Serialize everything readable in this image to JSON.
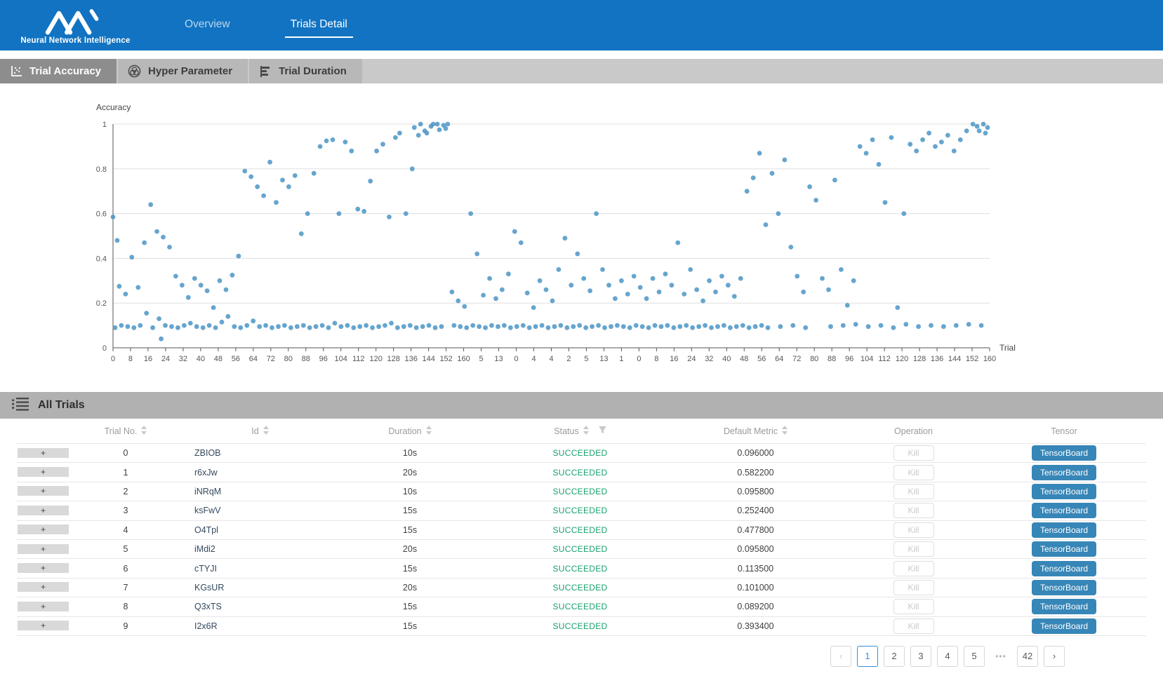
{
  "brand": {
    "subtitle": "Neural Network Intelligence"
  },
  "nav": {
    "tabs": [
      {
        "label": "Overview",
        "active": false
      },
      {
        "label": "Trials Detail",
        "active": true
      }
    ]
  },
  "subtabs": [
    {
      "label": "Trial Accuracy",
      "icon": "scatter-chart-icon",
      "active": true
    },
    {
      "label": "Hyper Parameter",
      "icon": "venn-rings-icon",
      "active": false
    },
    {
      "label": "Trial Duration",
      "icon": "bar-chart-icon",
      "active": false
    }
  ],
  "chart_data": {
    "type": "scatter",
    "title": "",
    "ylabel": "Accuracy",
    "xlabel": "Trial",
    "ylim": [
      0,
      1
    ],
    "grid": true,
    "y_ticks": [
      "0",
      "0.2",
      "0.4",
      "0.6",
      "0.8",
      "1"
    ],
    "x_tick_labels": [
      "0",
      "8",
      "16",
      "24",
      "32",
      "40",
      "48",
      "56",
      "64",
      "72",
      "80",
      "88",
      "96",
      "104",
      "112",
      "120",
      "128",
      "136",
      "144",
      "152",
      "160",
      "5",
      "13",
      "0",
      "4",
      "4",
      "2",
      "5",
      "13",
      "1",
      "0",
      "8",
      "16",
      "24",
      "32",
      "40",
      "48",
      "56",
      "64",
      "72",
      "80",
      "88",
      "96",
      "104",
      "112",
      "120",
      "128",
      "136",
      "144",
      "152",
      "160"
    ],
    "x_range": [
      0,
      419
    ],
    "point_color": "#4b95c6",
    "points": [
      [
        1,
        0.09
      ],
      [
        4,
        0.1
      ],
      [
        7,
        0.095
      ],
      [
        10,
        0.09
      ],
      [
        13,
        0.1
      ],
      [
        16,
        0.155
      ],
      [
        19,
        0.09
      ],
      [
        22,
        0.13
      ],
      [
        25,
        0.1
      ],
      [
        28,
        0.095
      ],
      [
        31,
        0.09
      ],
      [
        34,
        0.1
      ],
      [
        37,
        0.11
      ],
      [
        40,
        0.095
      ],
      [
        43,
        0.09
      ],
      [
        46,
        0.1
      ],
      [
        49,
        0.09
      ],
      [
        52,
        0.115
      ],
      [
        55,
        0.14
      ],
      [
        58,
        0.095
      ],
      [
        61,
        0.09
      ],
      [
        64,
        0.1
      ],
      [
        67,
        0.12
      ],
      [
        70,
        0.095
      ],
      [
        73,
        0.1
      ],
      [
        76,
        0.09
      ],
      [
        79,
        0.095
      ],
      [
        82,
        0.1
      ],
      [
        85,
        0.09
      ],
      [
        88,
        0.095
      ],
      [
        91,
        0.1
      ],
      [
        94,
        0.09
      ],
      [
        97,
        0.095
      ],
      [
        100,
        0.1
      ],
      [
        103,
        0.09
      ],
      [
        106,
        0.11
      ],
      [
        109,
        0.095
      ],
      [
        112,
        0.1
      ],
      [
        115,
        0.09
      ],
      [
        118,
        0.095
      ],
      [
        121,
        0.1
      ],
      [
        124,
        0.09
      ],
      [
        127,
        0.095
      ],
      [
        130,
        0.1
      ],
      [
        133,
        0.11
      ],
      [
        136,
        0.09
      ],
      [
        139,
        0.095
      ],
      [
        142,
        0.1
      ],
      [
        145,
        0.09
      ],
      [
        148,
        0.095
      ],
      [
        151,
        0.1
      ],
      [
        154,
        0.09
      ],
      [
        157,
        0.095
      ],
      [
        23,
        0.04
      ],
      [
        0,
        0.585
      ],
      [
        2,
        0.48
      ],
      [
        3,
        0.275
      ],
      [
        6,
        0.24
      ],
      [
        9,
        0.405
      ],
      [
        12,
        0.27
      ],
      [
        15,
        0.47
      ],
      [
        18,
        0.64
      ],
      [
        21,
        0.52
      ],
      [
        24,
        0.495
      ],
      [
        27,
        0.45
      ],
      [
        30,
        0.32
      ],
      [
        33,
        0.28
      ],
      [
        36,
        0.225
      ],
      [
        39,
        0.31
      ],
      [
        42,
        0.28
      ],
      [
        45,
        0.255
      ],
      [
        48,
        0.18
      ],
      [
        51,
        0.3
      ],
      [
        54,
        0.26
      ],
      [
        57,
        0.325
      ],
      [
        60,
        0.41
      ],
      [
        63,
        0.79
      ],
      [
        66,
        0.765
      ],
      [
        69,
        0.72
      ],
      [
        72,
        0.68
      ],
      [
        75,
        0.83
      ],
      [
        78,
        0.65
      ],
      [
        81,
        0.75
      ],
      [
        84,
        0.72
      ],
      [
        87,
        0.77
      ],
      [
        90,
        0.51
      ],
      [
        93,
        0.6
      ],
      [
        96,
        0.78
      ],
      [
        99,
        0.9
      ],
      [
        102,
        0.925
      ],
      [
        105,
        0.93
      ],
      [
        108,
        0.6
      ],
      [
        111,
        0.92
      ],
      [
        114,
        0.88
      ],
      [
        117,
        0.62
      ],
      [
        120,
        0.61
      ],
      [
        123,
        0.745
      ],
      [
        126,
        0.88
      ],
      [
        129,
        0.91
      ],
      [
        132,
        0.585
      ],
      [
        135,
        0.94
      ],
      [
        137,
        0.96
      ],
      [
        140,
        0.6
      ],
      [
        143,
        0.8
      ],
      [
        146,
        0.95
      ],
      [
        149,
        0.97
      ],
      [
        152,
        0.99
      ],
      [
        155,
        1
      ],
      [
        158,
        0.995
      ],
      [
        159,
        0.98
      ],
      [
        160,
        1
      ],
      [
        144,
        0.985
      ],
      [
        147,
        1
      ],
      [
        150,
        0.96
      ],
      [
        153,
        1
      ],
      [
        156,
        0.975
      ],
      [
        163,
        0.1
      ],
      [
        166,
        0.095
      ],
      [
        169,
        0.09
      ],
      [
        172,
        0.1
      ],
      [
        175,
        0.095
      ],
      [
        178,
        0.09
      ],
      [
        181,
        0.1
      ],
      [
        184,
        0.095
      ],
      [
        187,
        0.1
      ],
      [
        190,
        0.09
      ],
      [
        193,
        0.095
      ],
      [
        196,
        0.1
      ],
      [
        199,
        0.09
      ],
      [
        202,
        0.095
      ],
      [
        205,
        0.1
      ],
      [
        208,
        0.09
      ],
      [
        211,
        0.095
      ],
      [
        214,
        0.1
      ],
      [
        217,
        0.09
      ],
      [
        220,
        0.095
      ],
      [
        223,
        0.1
      ],
      [
        226,
        0.09
      ],
      [
        229,
        0.095
      ],
      [
        232,
        0.1
      ],
      [
        235,
        0.09
      ],
      [
        238,
        0.095
      ],
      [
        162,
        0.25
      ],
      [
        165,
        0.21
      ],
      [
        168,
        0.185
      ],
      [
        171,
        0.6
      ],
      [
        174,
        0.42
      ],
      [
        177,
        0.235
      ],
      [
        180,
        0.31
      ],
      [
        183,
        0.22
      ],
      [
        186,
        0.26
      ],
      [
        189,
        0.33
      ],
      [
        192,
        0.52
      ],
      [
        195,
        0.47
      ],
      [
        198,
        0.245
      ],
      [
        201,
        0.18
      ],
      [
        204,
        0.3
      ],
      [
        207,
        0.26
      ],
      [
        210,
        0.21
      ],
      [
        213,
        0.35
      ],
      [
        216,
        0.49
      ],
      [
        219,
        0.28
      ],
      [
        222,
        0.42
      ],
      [
        225,
        0.31
      ],
      [
        228,
        0.255
      ],
      [
        231,
        0.6
      ],
      [
        234,
        0.35
      ],
      [
        237,
        0.28
      ],
      [
        240,
        0.22
      ],
      [
        241,
        0.1
      ],
      [
        244,
        0.095
      ],
      [
        247,
        0.09
      ],
      [
        250,
        0.1
      ],
      [
        253,
        0.095
      ],
      [
        256,
        0.09
      ],
      [
        259,
        0.1
      ],
      [
        262,
        0.095
      ],
      [
        265,
        0.1
      ],
      [
        268,
        0.09
      ],
      [
        271,
        0.095
      ],
      [
        274,
        0.1
      ],
      [
        277,
        0.09
      ],
      [
        280,
        0.095
      ],
      [
        283,
        0.1
      ],
      [
        286,
        0.09
      ],
      [
        289,
        0.095
      ],
      [
        292,
        0.1
      ],
      [
        295,
        0.09
      ],
      [
        298,
        0.095
      ],
      [
        301,
        0.1
      ],
      [
        304,
        0.09
      ],
      [
        307,
        0.095
      ],
      [
        310,
        0.1
      ],
      [
        313,
        0.09
      ],
      [
        319,
        0.095
      ],
      [
        325,
        0.1
      ],
      [
        331,
        0.09
      ],
      [
        343,
        0.095
      ],
      [
        349,
        0.1
      ],
      [
        355,
        0.105
      ],
      [
        361,
        0.095
      ],
      [
        367,
        0.1
      ],
      [
        373,
        0.09
      ],
      [
        379,
        0.105
      ],
      [
        385,
        0.095
      ],
      [
        391,
        0.1
      ],
      [
        397,
        0.095
      ],
      [
        403,
        0.1
      ],
      [
        409,
        0.105
      ],
      [
        415,
        0.1
      ],
      [
        243,
        0.3
      ],
      [
        246,
        0.24
      ],
      [
        249,
        0.32
      ],
      [
        252,
        0.27
      ],
      [
        255,
        0.22
      ],
      [
        258,
        0.31
      ],
      [
        261,
        0.25
      ],
      [
        264,
        0.33
      ],
      [
        267,
        0.28
      ],
      [
        270,
        0.47
      ],
      [
        273,
        0.24
      ],
      [
        276,
        0.35
      ],
      [
        279,
        0.26
      ],
      [
        282,
        0.21
      ],
      [
        285,
        0.3
      ],
      [
        288,
        0.25
      ],
      [
        291,
        0.32
      ],
      [
        294,
        0.28
      ],
      [
        297,
        0.23
      ],
      [
        300,
        0.31
      ],
      [
        303,
        0.7
      ],
      [
        306,
        0.76
      ],
      [
        309,
        0.87
      ],
      [
        312,
        0.55
      ],
      [
        315,
        0.78
      ],
      [
        318,
        0.6
      ],
      [
        321,
        0.84
      ],
      [
        324,
        0.45
      ],
      [
        327,
        0.32
      ],
      [
        330,
        0.25
      ],
      [
        333,
        0.72
      ],
      [
        336,
        0.66
      ],
      [
        339,
        0.31
      ],
      [
        342,
        0.26
      ],
      [
        345,
        0.75
      ],
      [
        348,
        0.35
      ],
      [
        351,
        0.19
      ],
      [
        354,
        0.3
      ],
      [
        357,
        0.9
      ],
      [
        360,
        0.87
      ],
      [
        363,
        0.93
      ],
      [
        366,
        0.82
      ],
      [
        369,
        0.65
      ],
      [
        372,
        0.94
      ],
      [
        375,
        0.18
      ],
      [
        378,
        0.6
      ],
      [
        381,
        0.91
      ],
      [
        384,
        0.88
      ],
      [
        387,
        0.93
      ],
      [
        390,
        0.96
      ],
      [
        393,
        0.9
      ],
      [
        396,
        0.92
      ],
      [
        399,
        0.95
      ],
      [
        402,
        0.88
      ],
      [
        405,
        0.93
      ],
      [
        408,
        0.97
      ],
      [
        411,
        1
      ],
      [
        413,
        0.99
      ],
      [
        414,
        0.97
      ],
      [
        416,
        1
      ],
      [
        417,
        0.96
      ],
      [
        418,
        0.985
      ]
    ]
  },
  "table": {
    "section_title": "All Trials",
    "expand_symbol": "+",
    "kill_label": "Kill",
    "tensorboard_label": "TensorBoard",
    "columns": [
      {
        "label": "Trial No.",
        "sortable": true
      },
      {
        "label": "Id",
        "sortable": true
      },
      {
        "label": "Duration",
        "sortable": true
      },
      {
        "label": "Status",
        "sortable": true,
        "filterable": true
      },
      {
        "label": "Default Metric",
        "sortable": true
      },
      {
        "label": "Operation",
        "sortable": false
      },
      {
        "label": "Tensor",
        "sortable": false
      }
    ],
    "rows": [
      {
        "trial_no": "0",
        "id": "ZBIOB",
        "duration": "10s",
        "status": "SUCCEEDED",
        "metric": "0.096000"
      },
      {
        "trial_no": "1",
        "id": "r6xJw",
        "duration": "20s",
        "status": "SUCCEEDED",
        "metric": "0.582200"
      },
      {
        "trial_no": "2",
        "id": "iNRqM",
        "duration": "10s",
        "status": "SUCCEEDED",
        "metric": "0.095800"
      },
      {
        "trial_no": "3",
        "id": "ksFwV",
        "duration": "15s",
        "status": "SUCCEEDED",
        "metric": "0.252400"
      },
      {
        "trial_no": "4",
        "id": "O4Tpl",
        "duration": "15s",
        "status": "SUCCEEDED",
        "metric": "0.477800"
      },
      {
        "trial_no": "5",
        "id": "iMdi2",
        "duration": "20s",
        "status": "SUCCEEDED",
        "metric": "0.095800"
      },
      {
        "trial_no": "6",
        "id": "cTYJI",
        "duration": "15s",
        "status": "SUCCEEDED",
        "metric": "0.113500"
      },
      {
        "trial_no": "7",
        "id": "KGsUR",
        "duration": "20s",
        "status": "SUCCEEDED",
        "metric": "0.101000"
      },
      {
        "trial_no": "8",
        "id": "Q3xTS",
        "duration": "15s",
        "status": "SUCCEEDED",
        "metric": "0.089200"
      },
      {
        "trial_no": "9",
        "id": "I2x6R",
        "duration": "15s",
        "status": "SUCCEEDED",
        "metric": "0.393400"
      }
    ]
  },
  "pagination": {
    "prev": "‹",
    "next": "›",
    "pages": [
      "1",
      "2",
      "3",
      "4",
      "5",
      "•••",
      "42"
    ],
    "active_page": "1",
    "ellipsis": "•••"
  },
  "colors": {
    "header_blue": "#1173c1",
    "point_blue": "#4b95c6",
    "succeeded_green": "#17a16c",
    "tensorboard_blue": "#3786b8",
    "pagination_active_blue": "#3a8ddb"
  }
}
